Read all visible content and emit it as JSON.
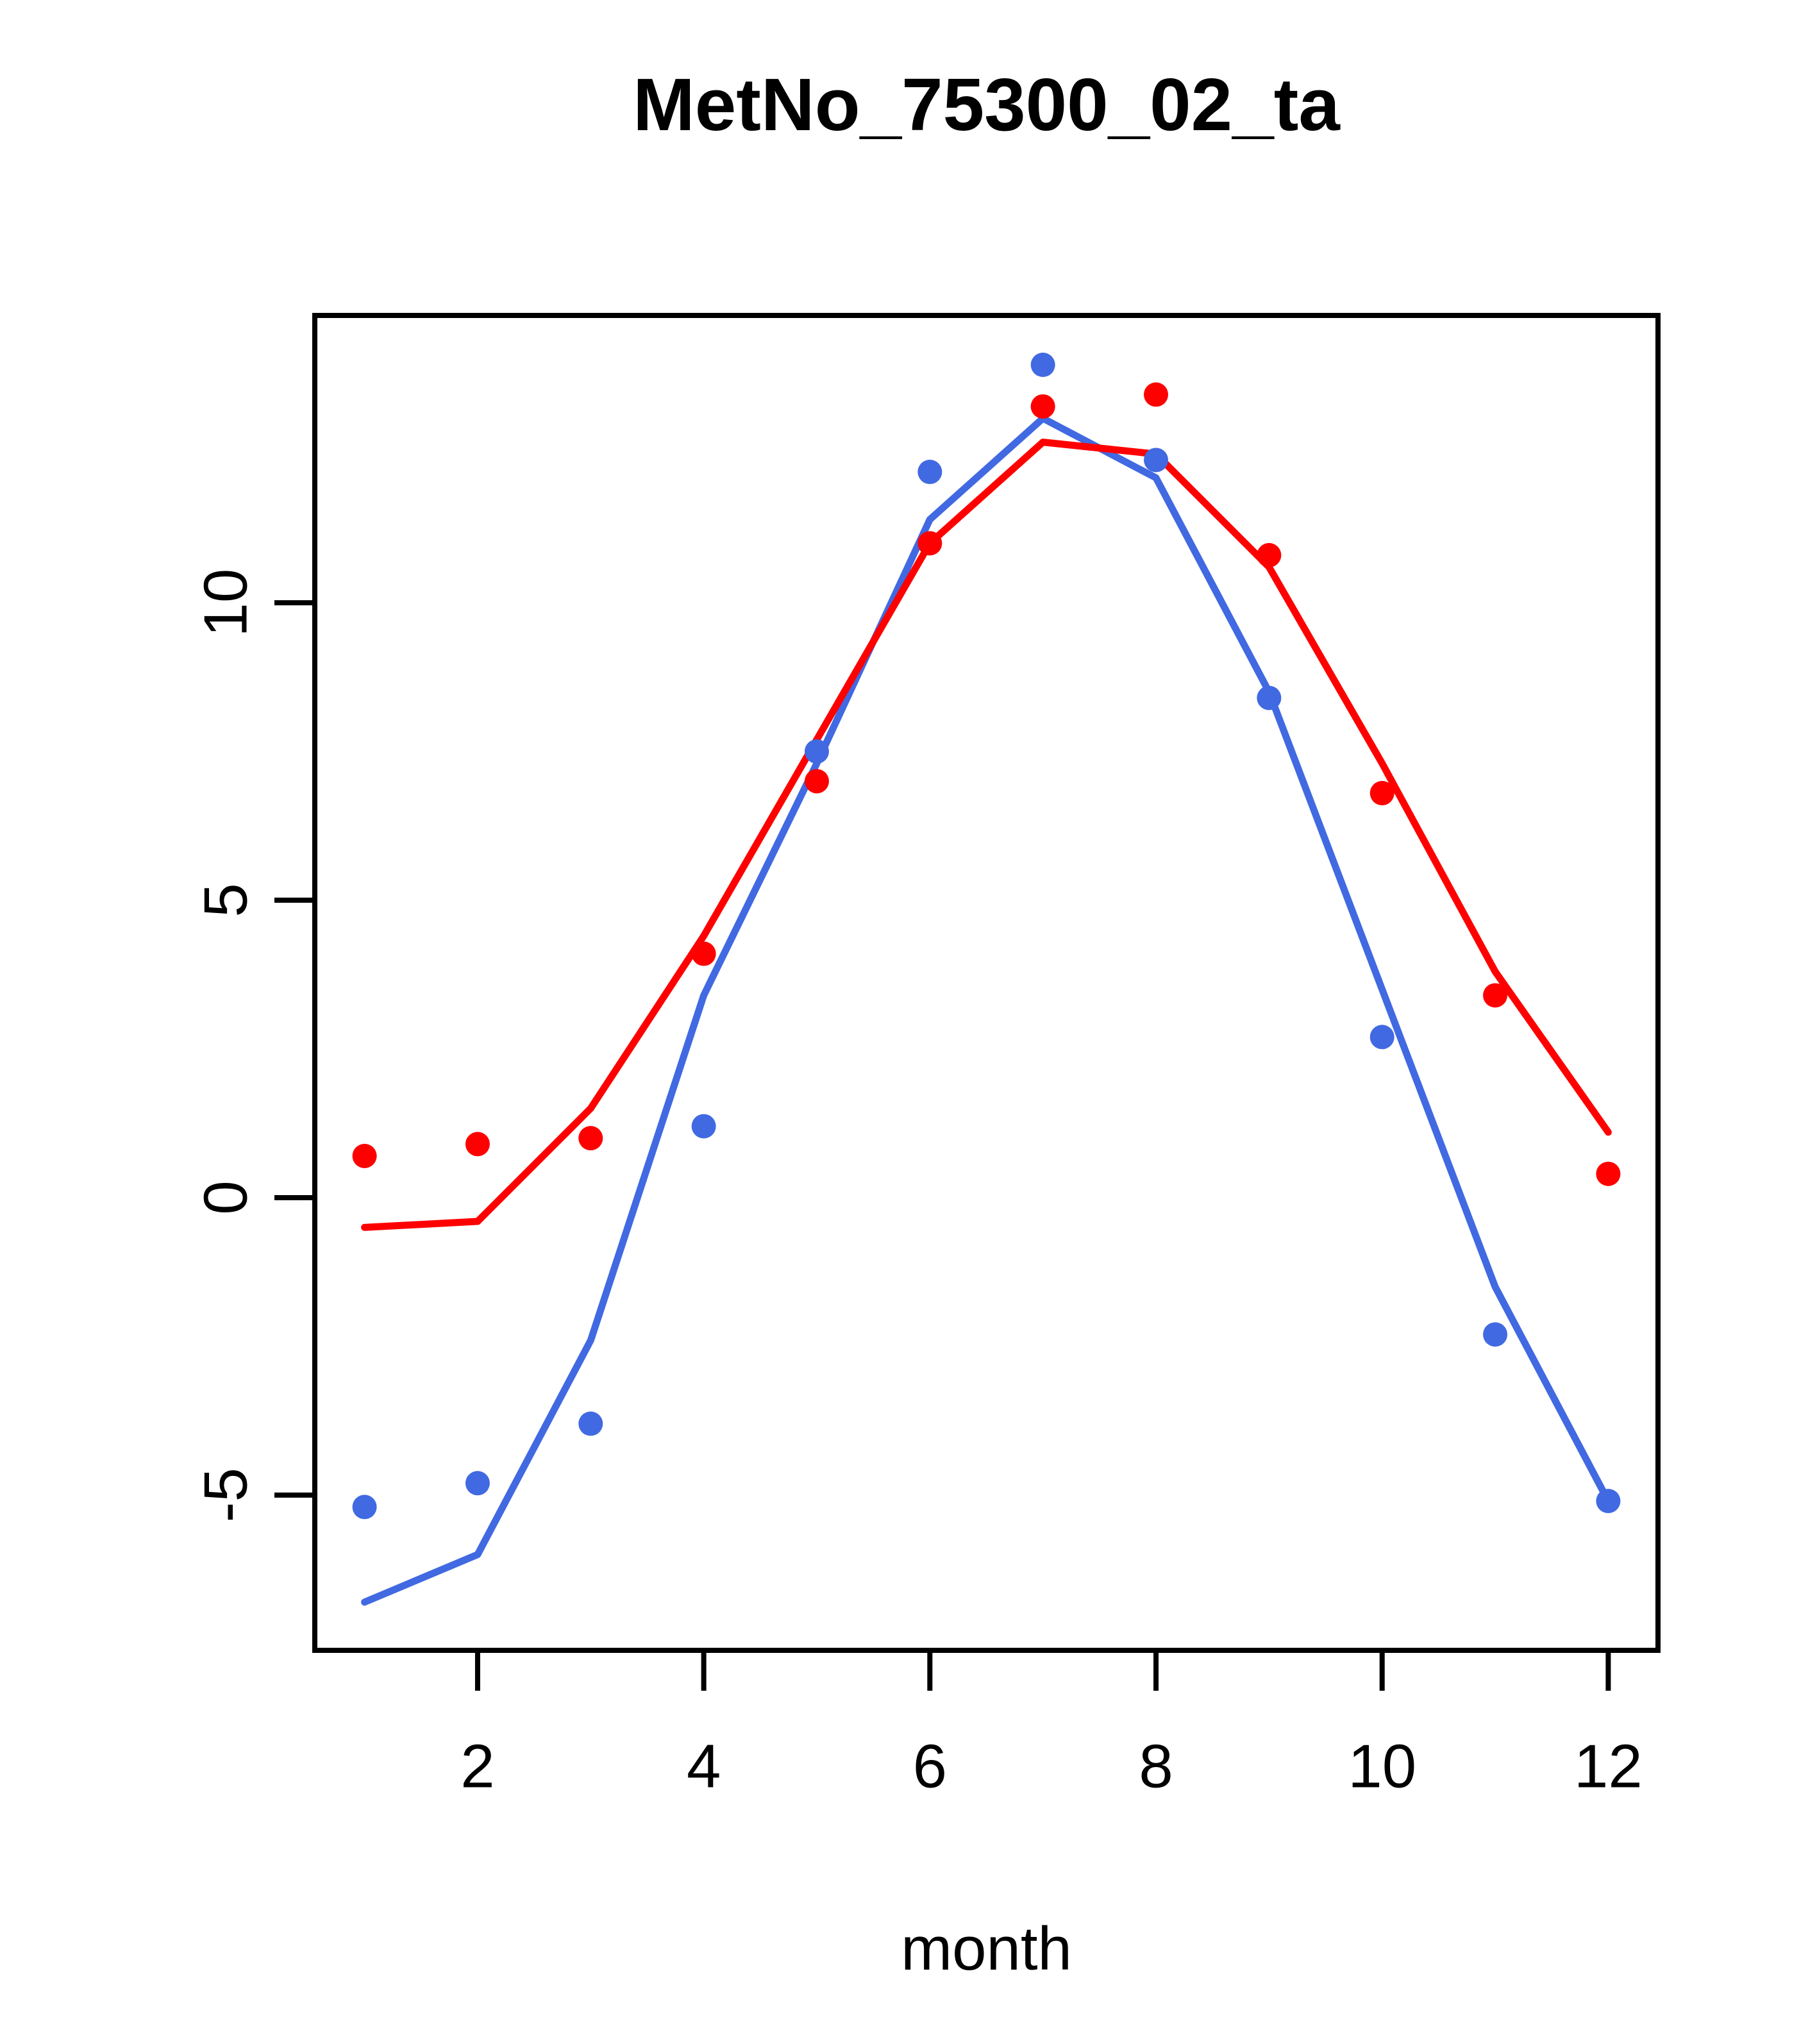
{
  "chart_data": {
    "type": "line",
    "title": "MetNo_75300_02_ta",
    "xlabel": "month",
    "ylabel": "",
    "x": [
      1,
      2,
      3,
      4,
      5,
      6,
      7,
      8,
      9,
      10,
      11,
      12
    ],
    "xticks": [
      "2",
      "4",
      "6",
      "8",
      "10",
      "12"
    ],
    "xtick_values": [
      2,
      4,
      6,
      8,
      10,
      12
    ],
    "yticks": [
      "-5",
      "0",
      "5",
      "10"
    ],
    "ytick_values": [
      -5,
      0,
      5,
      10
    ],
    "xlim": [
      0.56,
      12.44
    ],
    "ylim": [
      -7.61,
      14.83
    ],
    "grid": false,
    "legend_position": "none",
    "colors": {
      "red": "#FF0000",
      "blue": "#4169E1",
      "axis": "#000000"
    },
    "series": [
      {
        "id": "blue-line",
        "color": "blue",
        "style": "line",
        "values": [
          -6.8,
          -6.0,
          -2.4,
          3.4,
          7.3,
          11.4,
          13.1,
          12.1,
          8.5,
          3.5,
          -1.5,
          -5.1
        ]
      },
      {
        "id": "red-line",
        "color": "red",
        "style": "line",
        "values": [
          -0.5,
          -0.4,
          1.5,
          4.4,
          7.7,
          11.0,
          12.7,
          12.5,
          10.6,
          7.3,
          3.8,
          1.1
        ]
      },
      {
        "id": "blue-points",
        "color": "blue",
        "style": "points",
        "values": [
          -5.2,
          -4.8,
          -3.8,
          1.2,
          7.5,
          12.2,
          14.0,
          12.4,
          8.4,
          2.7,
          -2.3,
          -5.1
        ]
      },
      {
        "id": "red-points",
        "color": "red",
        "style": "points",
        "values": [
          0.7,
          0.9,
          1.0,
          4.1,
          7.0,
          11.0,
          13.3,
          13.5,
          10.8,
          6.8,
          3.4,
          0.4
        ]
      }
    ]
  }
}
